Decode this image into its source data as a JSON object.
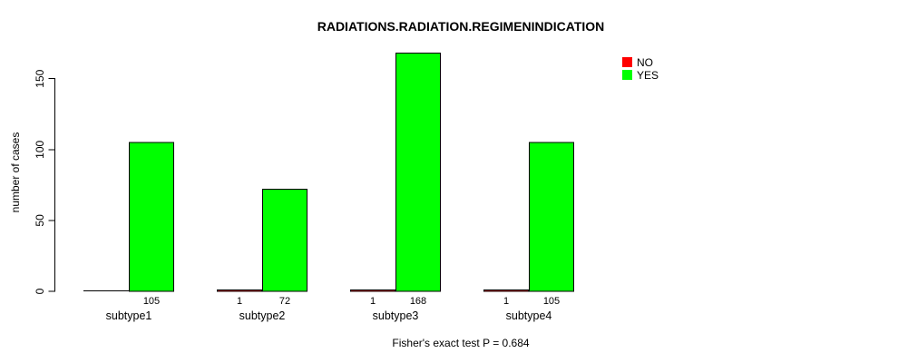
{
  "chart_data": {
    "type": "bar",
    "title": "RADIATIONS.RADIATION.REGIMENINDICATION",
    "ylabel": "number of cases",
    "xlabel": "",
    "caption": "Fisher's exact test P = 0.684",
    "categories": [
      "subtype1",
      "subtype2",
      "subtype3",
      "subtype4"
    ],
    "series": [
      {
        "name": "NO",
        "color": "#ff0000",
        "values": [
          0,
          1,
          1,
          1
        ],
        "value_labels": [
          "",
          "1",
          "1",
          "1"
        ]
      },
      {
        "name": "YES",
        "color": "#00ff00",
        "values": [
          105,
          72,
          168,
          105
        ],
        "value_labels": [
          "105",
          "72",
          "168",
          "105"
        ]
      }
    ],
    "yticks": [
      0,
      50,
      100,
      150
    ],
    "ylim": [
      0,
      168
    ],
    "grid": false,
    "legend_position": "top-right",
    "bar_border_color": "#000000",
    "background_color": "#ffffff"
  }
}
